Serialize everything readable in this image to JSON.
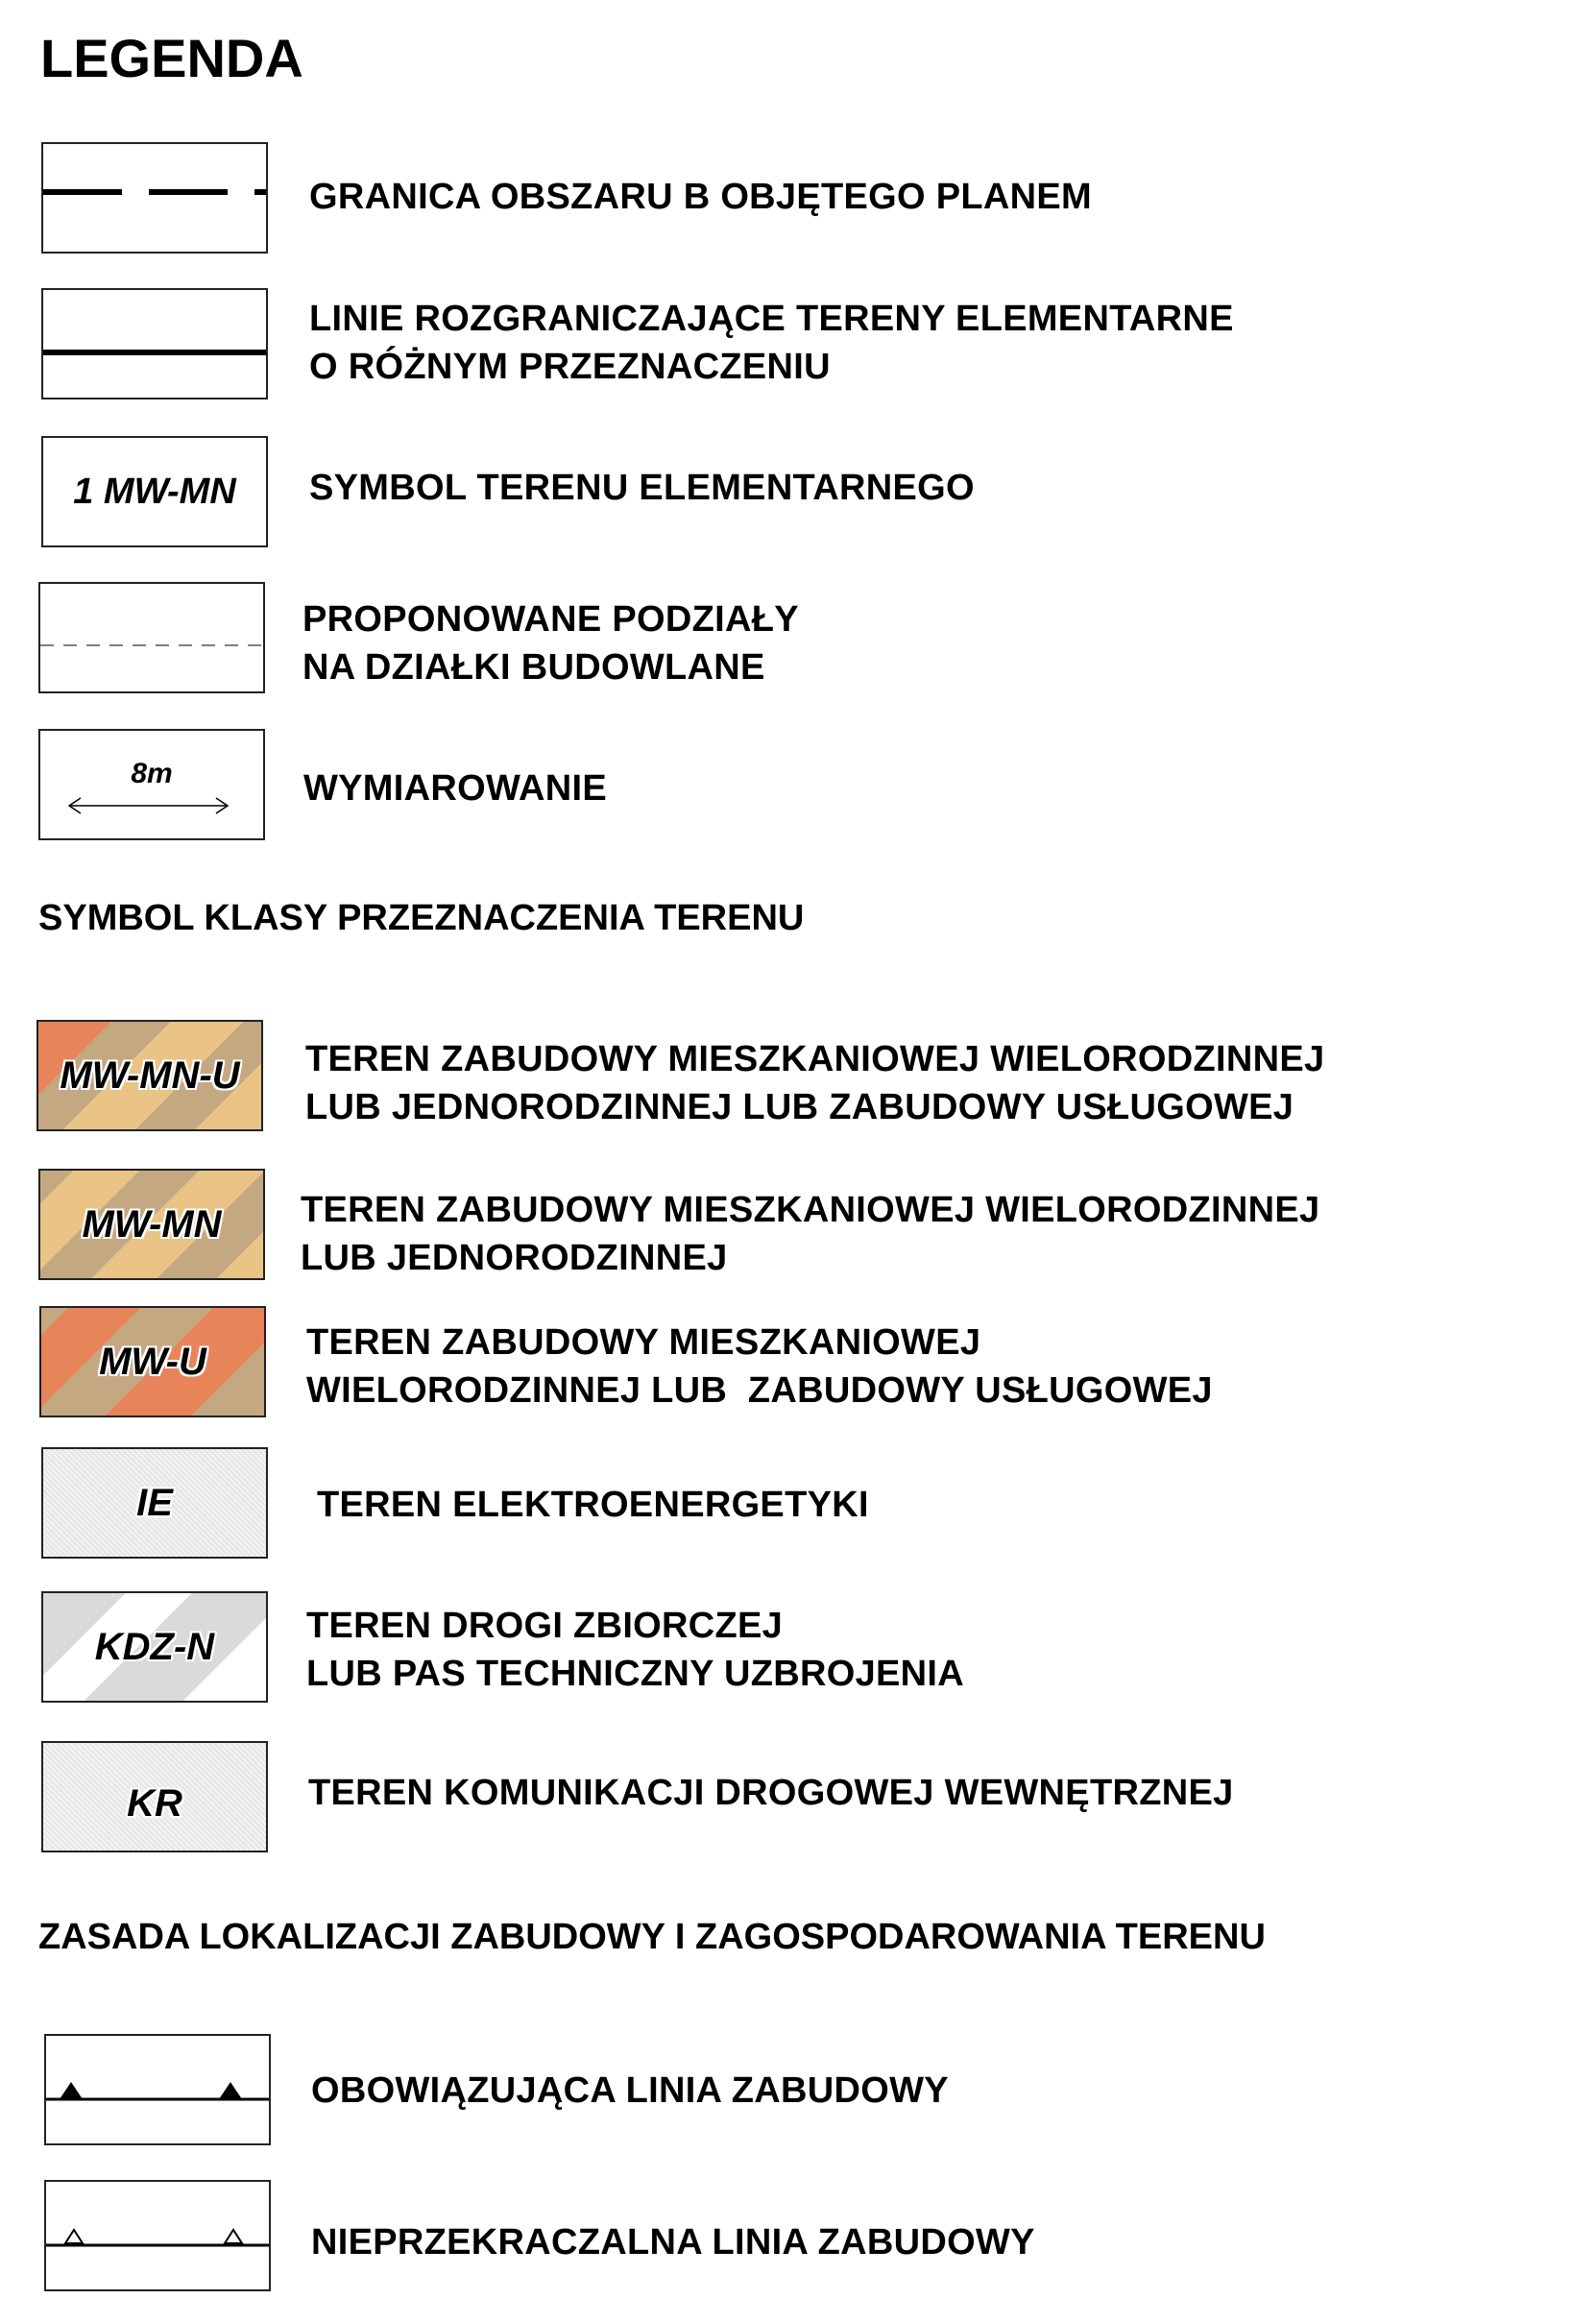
{
  "title": "LEGENDA",
  "lines": [
    {
      "label": "GRANICA OBSZARU B OBJĘTEGO PLANEM",
      "icon": "dashed-boundary-line"
    },
    {
      "label": "LINIE ROZGRANICZAJĄCE TERENY ELEMENTARNE\nO RÓŻNYM PRZEZNACZENIU",
      "icon": "solid-line"
    },
    {
      "label": "SYMBOL TERENU ELEMENTARNEGO",
      "symbol": "1 MW-MN"
    },
    {
      "label": "PROPONOWANE PODZIAŁY\nNA DZIAŁKI BUDOWLANE",
      "icon": "thin-dashed-line"
    },
    {
      "label": "WYMIAROWANIE",
      "symbol": "8m",
      "icon": "dimension-arrow"
    }
  ],
  "section_classes": "SYMBOL KLASY PRZEZNACZENIA TERENU",
  "classes": [
    {
      "symbol": "MW-MN-U",
      "label": "TEREN ZABUDOWY MIESZKANIOWEJ WIELORODZINNEJ\nLUB JEDNORODZINNEJ LUB ZABUDOWY USŁUGOWEJ",
      "colors": [
        "#e8845a",
        "#c4a882",
        "#e9c486"
      ]
    },
    {
      "symbol": "MW-MN",
      "label": "TEREN ZABUDOWY MIESZKANIOWEJ WIELORODZINNEJ\nLUB JEDNORODZINNEJ",
      "colors": [
        "#e9c486",
        "#c4a882"
      ]
    },
    {
      "symbol": "MW-U",
      "label": "TEREN ZABUDOWY MIESZKANIOWEJ\nWIELORODZINNEJ LUB  ZABUDOWY USŁUGOWEJ",
      "colors": [
        "#e8845a",
        "#c4a882"
      ]
    },
    {
      "symbol": "IE",
      "label": "TEREN ELEKTROENERGETYKI",
      "colors": [
        "#ececec"
      ]
    },
    {
      "symbol": "KDZ-N",
      "label": "TEREN DROGI ZBIORCZEJ\nLUB PAS TECHNICZNY UZBROJENIA",
      "colors": [
        "#d9d9d9",
        "#ffffff"
      ]
    },
    {
      "symbol": "KR",
      "label": "TEREN KOMUNIKACJI DROGOWEJ WEWNĘTRZNEJ",
      "colors": [
        "#ececec"
      ]
    }
  ],
  "section_rules": "ZASADA LOKALIZACJI ZABUDOWY I ZAGOSPODAROWANIA TERENU",
  "rules": [
    {
      "label": "OBOWIĄZUJĄCA LINIA ZABUDOWY",
      "icon": "filled-triangle-line"
    },
    {
      "label": "NIEPRZEKRACZALNA LINIA ZABUDOWY",
      "icon": "open-triangle-line"
    }
  ]
}
